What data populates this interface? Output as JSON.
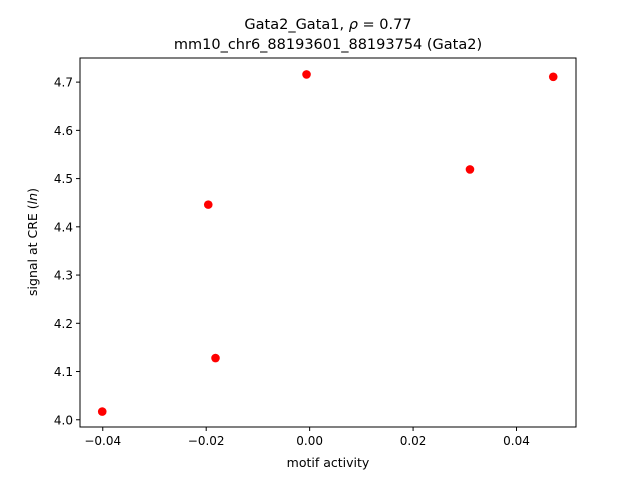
{
  "chart_data": {
    "type": "scatter",
    "title_line1": "Gata2_Gata1, ρ = 0.77",
    "title_line2": "mm10_chr6_88193601_88193754 (Gata2)",
    "xlabel": "motif activity",
    "ylabel": "signal at CRE (ln)",
    "xlim": [
      -0.0444,
      0.0515
    ],
    "ylim": [
      3.985,
      4.75
    ],
    "x_ticks": [
      -0.04,
      -0.02,
      0.0,
      0.02,
      0.04
    ],
    "x_tick_labels": [
      "−0.04",
      "−0.02",
      "0.00",
      "0.02",
      "0.04"
    ],
    "y_ticks": [
      4.0,
      4.1,
      4.2,
      4.3,
      4.4,
      4.5,
      4.6,
      4.7
    ],
    "y_tick_labels": [
      "4.0",
      "4.1",
      "4.2",
      "4.3",
      "4.4",
      "4.5",
      "4.6",
      "4.7"
    ],
    "marker_color": "#ff0000",
    "points": [
      {
        "x": -0.0401,
        "y": 4.017
      },
      {
        "x": -0.0182,
        "y": 4.128
      },
      {
        "x": -0.0196,
        "y": 4.446
      },
      {
        "x": -0.0006,
        "y": 4.716
      },
      {
        "x": 0.031,
        "y": 4.519
      },
      {
        "x": 0.0471,
        "y": 4.711
      }
    ]
  }
}
